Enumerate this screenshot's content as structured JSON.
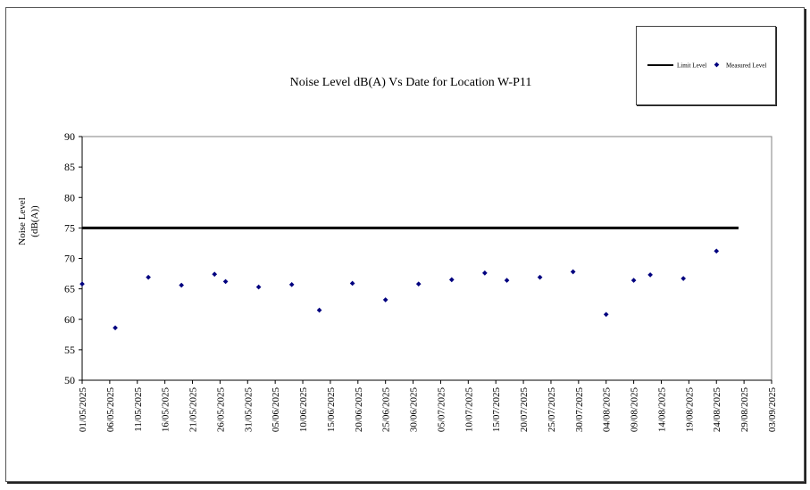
{
  "chart_data": {
    "type": "scatter",
    "title": "Noise Level dB(A) Vs Date for Location W-P11",
    "ylabel_lines": [
      "Noise Level",
      "(dB(A))"
    ],
    "xlabel": "",
    "ylim": [
      50,
      90
    ],
    "yticks": [
      50,
      55,
      60,
      65,
      70,
      75,
      80,
      85,
      90
    ],
    "xlim": [
      "2025-05-01",
      "2025-09-03"
    ],
    "xticks": [
      "01/05/2025",
      "06/05/2025",
      "11/05/2025",
      "16/05/2025",
      "21/05/2025",
      "26/05/2025",
      "31/05/2025",
      "05/06/2025",
      "10/06/2025",
      "15/06/2025",
      "20/06/2025",
      "25/06/2025",
      "30/06/2025",
      "05/07/2025",
      "10/07/2025",
      "15/07/2025",
      "20/07/2025",
      "25/07/2025",
      "30/07/2025",
      "04/08/2025",
      "09/08/2025",
      "14/08/2025",
      "19/08/2025",
      "24/08/2025",
      "29/08/2025",
      "03/09/2025"
    ],
    "grid": false,
    "legend_position": "top-right",
    "limit_series": {
      "name": "Limit Level",
      "color": "#000000",
      "points": [
        {
          "x": "2025-05-01",
          "y": 75
        },
        {
          "x": "2025-08-28",
          "y": 75
        }
      ]
    },
    "series": [
      {
        "name": "Measured Level",
        "color": "#00007f",
        "points": [
          {
            "x": "2025-05-01",
            "y": 65.8
          },
          {
            "x": "2025-05-07",
            "y": 58.6
          },
          {
            "x": "2025-05-13",
            "y": 66.9
          },
          {
            "x": "2025-05-19",
            "y": 65.6
          },
          {
            "x": "2025-05-25",
            "y": 67.4
          },
          {
            "x": "2025-05-27",
            "y": 66.2
          },
          {
            "x": "2025-06-02",
            "y": 65.3
          },
          {
            "x": "2025-06-08",
            "y": 65.7
          },
          {
            "x": "2025-06-13",
            "y": 61.5
          },
          {
            "x": "2025-06-19",
            "y": 65.9
          },
          {
            "x": "2025-06-25",
            "y": 63.2
          },
          {
            "x": "2025-07-01",
            "y": 65.8
          },
          {
            "x": "2025-07-07",
            "y": 66.5
          },
          {
            "x": "2025-07-13",
            "y": 67.6
          },
          {
            "x": "2025-07-17",
            "y": 66.4
          },
          {
            "x": "2025-07-23",
            "y": 66.9
          },
          {
            "x": "2025-07-29",
            "y": 67.8
          },
          {
            "x": "2025-08-04",
            "y": 60.8
          },
          {
            "x": "2025-08-09",
            "y": 66.4
          },
          {
            "x": "2025-08-12",
            "y": 67.3
          },
          {
            "x": "2025-08-18",
            "y": 66.7
          },
          {
            "x": "2025-08-24",
            "y": 71.2
          }
        ]
      }
    ]
  }
}
